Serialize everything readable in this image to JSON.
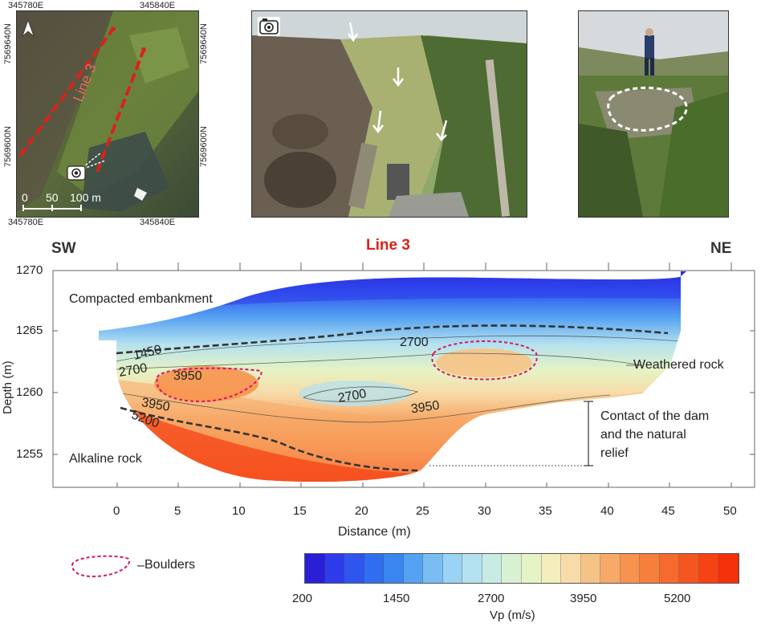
{
  "map": {
    "coord_top_left": "345780E",
    "coord_top_right": "345840E",
    "coord_bottom_left": "345780E",
    "coord_bottom_right": "345840E",
    "coord_left_upper": "7569640N",
    "coord_left_lower": "7569600N",
    "coord_right_upper": "7569640N",
    "coord_right_lower": "7569600N",
    "line_label": "Line 3",
    "scale_labels": [
      "0",
      "50",
      "100 m"
    ]
  },
  "section": {
    "title": "Line 3",
    "left_dir": "SW",
    "right_dir": "NE",
    "ylabel": "Depth (m)",
    "xlabel": "Distance (m)",
    "y_ticks": [
      "1270",
      "1265",
      "1260",
      "1255"
    ],
    "x_ticks": [
      "0",
      "5",
      "10",
      "15",
      "20",
      "25",
      "30",
      "35",
      "40",
      "45",
      "50"
    ],
    "labels": {
      "embankment": "Compacted embankment",
      "weathered": "Weathered rock",
      "alkaline": "Alkaline rock",
      "contact_1": "Contact of the dam",
      "contact_2": "and the natural",
      "contact_3": "relief"
    },
    "contours": {
      "c1450": "1450",
      "c2700a": "2700",
      "c2700b": "2700",
      "c2700c": "2700",
      "c3950a": "3950",
      "c3950b": "3950",
      "c3950c": "3950",
      "c5200": "5200"
    }
  },
  "legend": {
    "boulders": "Boulders",
    "colorbar_ticks": [
      "200",
      "1450",
      "2700",
      "3950",
      "5200"
    ],
    "colorbar_label": "Vp (m/s)"
  },
  "colors": {
    "colorbar": [
      "#2a1fd6",
      "#2d3bea",
      "#2f55ef",
      "#2f6fef",
      "#3a86f0",
      "#55a2f2",
      "#79bdf3",
      "#9bd3f4",
      "#b4e1ef",
      "#c9ebe4",
      "#d9f1d3",
      "#e6f3c4",
      "#f3eebb",
      "#f7dcaa",
      "#f6c386",
      "#f7a968",
      "#f7934e",
      "#f77f3d",
      "#f66a2e",
      "#f55620",
      "#f54314",
      "#f4310a"
    ],
    "line3_red": "#d9221c",
    "boulder_outline": "#d4166a"
  }
}
